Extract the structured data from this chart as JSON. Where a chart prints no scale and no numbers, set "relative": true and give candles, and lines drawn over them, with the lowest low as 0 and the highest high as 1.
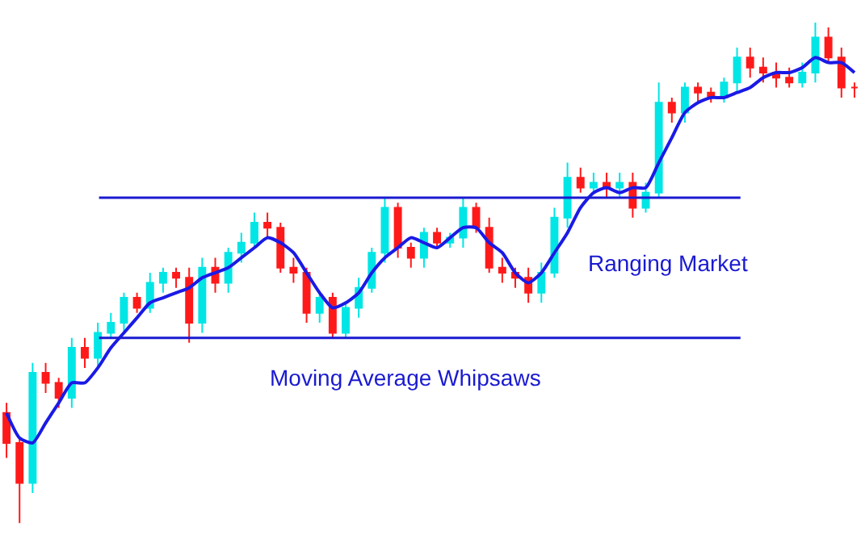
{
  "chart_data": {
    "type": "candlestick",
    "relative": true,
    "tick_labels": false,
    "categories": [
      null,
      null,
      null,
      null,
      null,
      null,
      null,
      null,
      null,
      null,
      null,
      null,
      null,
      null,
      null,
      null,
      null,
      null,
      null,
      null,
      null,
      null,
      null,
      null,
      null,
      null,
      null,
      null,
      null,
      null,
      null,
      null,
      null,
      null,
      null,
      null,
      null,
      null,
      null,
      null,
      null,
      null,
      null,
      null,
      null,
      null,
      null,
      null,
      null,
      null,
      null,
      null,
      null,
      null,
      null,
      null,
      null,
      null,
      null,
      null,
      null,
      null,
      null,
      null,
      null,
      null
    ],
    "colors": [
      "#ff1a1a",
      "#ff1a1a",
      "#00e5e5",
      "#ff1a1a",
      "#ff1a1a",
      "#00e5e5",
      "#ff1a1a",
      "#00e5e5",
      "#00e5e5",
      "#00e5e5",
      "#ff1a1a",
      "#00e5e5",
      "#00e5e5",
      "#ff1a1a",
      "#ff1a1a",
      "#00e5e5",
      "#ff1a1a",
      "#00e5e5",
      "#00e5e5",
      "#00e5e5",
      "#ff1a1a",
      "#ff1a1a",
      "#ff1a1a",
      "#ff1a1a",
      "#00e5e5",
      "#ff1a1a",
      "#00e5e5",
      "#00e5e5",
      "#00e5e5",
      "#00e5e5",
      "#ff1a1a",
      "#ff1a1a",
      "#00e5e5",
      "#ff1a1a",
      "#00e5e5",
      "#00e5e5",
      "#ff1a1a",
      "#ff1a1a",
      "#ff1a1a",
      "#ff1a1a",
      "#ff1a1a",
      "#00e5e5",
      "#00e5e5",
      "#00e5e5",
      "#ff1a1a",
      "#00e5e5",
      "#ff1a1a",
      "#00e5e5",
      "#ff1a1a",
      "#00e5e5",
      "#00e5e5",
      "#ff1a1a",
      "#00e5e5",
      "#ff1a1a",
      "#ff1a1a",
      "#00e5e5",
      "#00e5e5",
      "#ff1a1a",
      "#ff1a1a",
      "#ff1a1a",
      "#ff1a1a",
      "#00e5e5",
      "#00e5e5",
      "#ff1a1a",
      "#ff1a1a",
      "#ff1a1a"
    ],
    "ohlc": [
      [
        0.22,
        0.24,
        0.13,
        0.16
      ],
      [
        0.16,
        0.17,
        0,
        0.08
      ],
      [
        0.08,
        0.32,
        0.06,
        0.3
      ],
      [
        0.3,
        0.32,
        0.26,
        0.28
      ],
      [
        0.28,
        0.29,
        0.23,
        0.25
      ],
      [
        0.25,
        0.37,
        0.23,
        0.35
      ],
      [
        0.35,
        0.37,
        0.31,
        0.33
      ],
      [
        0.33,
        0.4,
        0.31,
        0.38
      ],
      [
        0.38,
        0.42,
        0.37,
        0.4
      ],
      [
        0.4,
        0.46,
        0.38,
        0.45
      ],
      [
        0.45,
        0.46,
        0.42,
        0.43
      ],
      [
        0.43,
        0.5,
        0.42,
        0.48
      ],
      [
        0.48,
        0.51,
        0.46,
        0.5
      ],
      [
        0.5,
        0.51,
        0.47,
        0.49
      ],
      [
        0.49,
        0.51,
        0.36,
        0.4
      ],
      [
        0.4,
        0.53,
        0.38,
        0.51
      ],
      [
        0.51,
        0.53,
        0.46,
        0.48
      ],
      [
        0.48,
        0.55,
        0.46,
        0.54
      ],
      [
        0.54,
        0.58,
        0.52,
        0.56
      ],
      [
        0.56,
        0.62,
        0.55,
        0.6
      ],
      [
        0.6,
        0.62,
        0.57,
        0.59
      ],
      [
        0.59,
        0.6,
        0.5,
        0.51
      ],
      [
        0.51,
        0.53,
        0.48,
        0.5
      ],
      [
        0.5,
        0.51,
        0.4,
        0.42
      ],
      [
        0.42,
        0.46,
        0.4,
        0.45
      ],
      [
        0.45,
        0.46,
        0.37,
        0.38
      ],
      [
        0.38,
        0.44,
        0.37,
        0.43
      ],
      [
        0.43,
        0.49,
        0.41,
        0.47
      ],
      [
        0.47,
        0.55,
        0.46,
        0.54
      ],
      [
        0.54,
        0.65,
        0.52,
        0.63
      ],
      [
        0.63,
        0.64,
        0.53,
        0.55
      ],
      [
        0.55,
        0.56,
        0.51,
        0.53
      ],
      [
        0.53,
        0.59,
        0.51,
        0.58
      ],
      [
        0.58,
        0.59,
        0.55,
        0.56
      ],
      [
        0.56,
        0.58,
        0.55,
        0.57
      ],
      [
        0.57,
        0.65,
        0.55,
        0.63
      ],
      [
        0.63,
        0.64,
        0.58,
        0.59
      ],
      [
        0.59,
        0.61,
        0.5,
        0.51
      ],
      [
        0.51,
        0.53,
        0.48,
        0.5
      ],
      [
        0.5,
        0.51,
        0.47,
        0.49
      ],
      [
        0.49,
        0.51,
        0.44,
        0.46
      ],
      [
        0.46,
        0.52,
        0.44,
        0.5
      ],
      [
        0.5,
        0.63,
        0.49,
        0.61
      ],
      [
        0.61,
        0.72,
        0.59,
        0.69
      ],
      [
        0.69,
        0.71,
        0.66,
        0.67
      ],
      [
        0.67,
        0.7,
        0.66,
        0.68
      ],
      [
        0.68,
        0.7,
        0.65,
        0.67
      ],
      [
        0.67,
        0.7,
        0.65,
        0.68
      ],
      [
        0.68,
        0.7,
        0.61,
        0.63
      ],
      [
        0.63,
        0.68,
        0.62,
        0.66
      ],
      [
        0.66,
        0.88,
        0.65,
        0.84
      ],
      [
        0.84,
        0.85,
        0.8,
        0.82
      ],
      [
        0.82,
        0.88,
        0.8,
        0.87
      ],
      [
        0.87,
        0.88,
        0.84,
        0.86
      ],
      [
        0.86,
        0.87,
        0.84,
        0.85
      ],
      [
        0.85,
        0.89,
        0.84,
        0.88
      ],
      [
        0.88,
        0.95,
        0.86,
        0.93
      ],
      [
        0.93,
        0.95,
        0.89,
        0.91
      ],
      [
        0.91,
        0.93,
        0.88,
        0.9
      ],
      [
        0.9,
        0.92,
        0.87,
        0.89
      ],
      [
        0.89,
        0.91,
        0.87,
        0.88
      ],
      [
        0.88,
        0.92,
        0.87,
        0.9
      ],
      [
        0.9,
        1,
        0.88,
        0.97
      ],
      [
        0.97,
        0.99,
        0.92,
        0.93
      ],
      [
        0.93,
        0.95,
        0.85,
        0.87
      ],
      [
        0.87,
        0.88,
        0.85,
        0.87
      ]
    ],
    "series": [
      {
        "type": "line",
        "color": "#1a1ae6",
        "marker": "none",
        "line_style": "solid",
        "values": [
          0.22,
          0.17,
          0.16,
          0.2,
          0.24,
          0.28,
          0.28,
          0.31,
          0.35,
          0.38,
          0.41,
          0.44,
          0.45,
          0.46,
          0.47,
          0.49,
          0.5,
          0.51,
          0.53,
          0.55,
          0.57,
          0.56,
          0.54,
          0.5,
          0.46,
          0.43,
          0.44,
          0.46,
          0.5,
          0.53,
          0.55,
          0.57,
          0.56,
          0.55,
          0.57,
          0.59,
          0.59,
          0.56,
          0.54,
          0.5,
          0.48,
          0.5,
          0.54,
          0.58,
          0.63,
          0.66,
          0.67,
          0.66,
          0.67,
          0.67,
          0.72,
          0.77,
          0.82,
          0.84,
          0.85,
          0.85,
          0.86,
          0.87,
          0.89,
          0.9,
          0.9,
          0.91,
          0.93,
          0.92,
          0.92,
          0.9
        ]
      }
    ],
    "ref_lines": [
      {
        "axis": "y",
        "value": 0.65,
        "color": "#1a1ad0"
      },
      {
        "axis": "y",
        "value": 0.37,
        "color": "#1a1ad0"
      }
    ],
    "annotations": [
      "Ranging Market",
      "Moving Average Whipsaws"
    ]
  }
}
